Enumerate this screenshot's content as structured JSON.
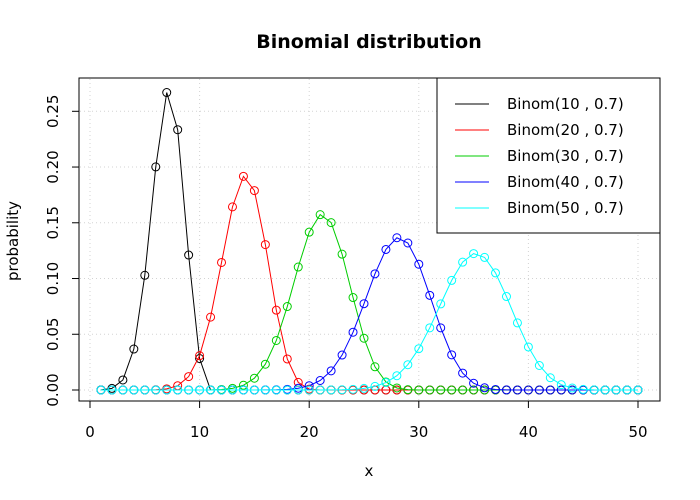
{
  "chart_data": {
    "type": "line",
    "title": "Binomial distribution",
    "xlabel": "x",
    "ylabel": "probability",
    "xlim": [
      0,
      50
    ],
    "ylim": [
      0,
      0.27
    ],
    "xticks": [
      0,
      10,
      20,
      30,
      40,
      50
    ],
    "yticks": [
      0.0,
      0.05,
      0.1,
      0.15,
      0.2,
      0.25
    ],
    "ytick_labels": [
      "0.00",
      "0.05",
      "0.10",
      "0.15",
      "0.20",
      "0.25"
    ],
    "grid": true,
    "legend_position": "top-right",
    "x": [
      1,
      2,
      3,
      4,
      5,
      6,
      7,
      8,
      9,
      10,
      11,
      12,
      13,
      14,
      15,
      16,
      17,
      18,
      19,
      20,
      21,
      22,
      23,
      24,
      25,
      26,
      27,
      28,
      29,
      30,
      31,
      32,
      33,
      34,
      35,
      36,
      37,
      38,
      39,
      40,
      41,
      42,
      43,
      44,
      45,
      46,
      47,
      48,
      49,
      50
    ],
    "series": [
      {
        "name": "Binom(10 , 0.7)",
        "n": 10,
        "p": 0.7,
        "color": "#000000"
      },
      {
        "name": "Binom(20 , 0.7)",
        "n": 20,
        "p": 0.7,
        "color": "#ff0000"
      },
      {
        "name": "Binom(30 , 0.7)",
        "n": 30,
        "p": 0.7,
        "color": "#00cd00"
      },
      {
        "name": "Binom(40 , 0.7)",
        "n": 40,
        "p": 0.7,
        "color": "#0000ff"
      },
      {
        "name": "Binom(50 , 0.7)",
        "n": 50,
        "p": 0.7,
        "color": "#00ffff"
      }
    ]
  }
}
